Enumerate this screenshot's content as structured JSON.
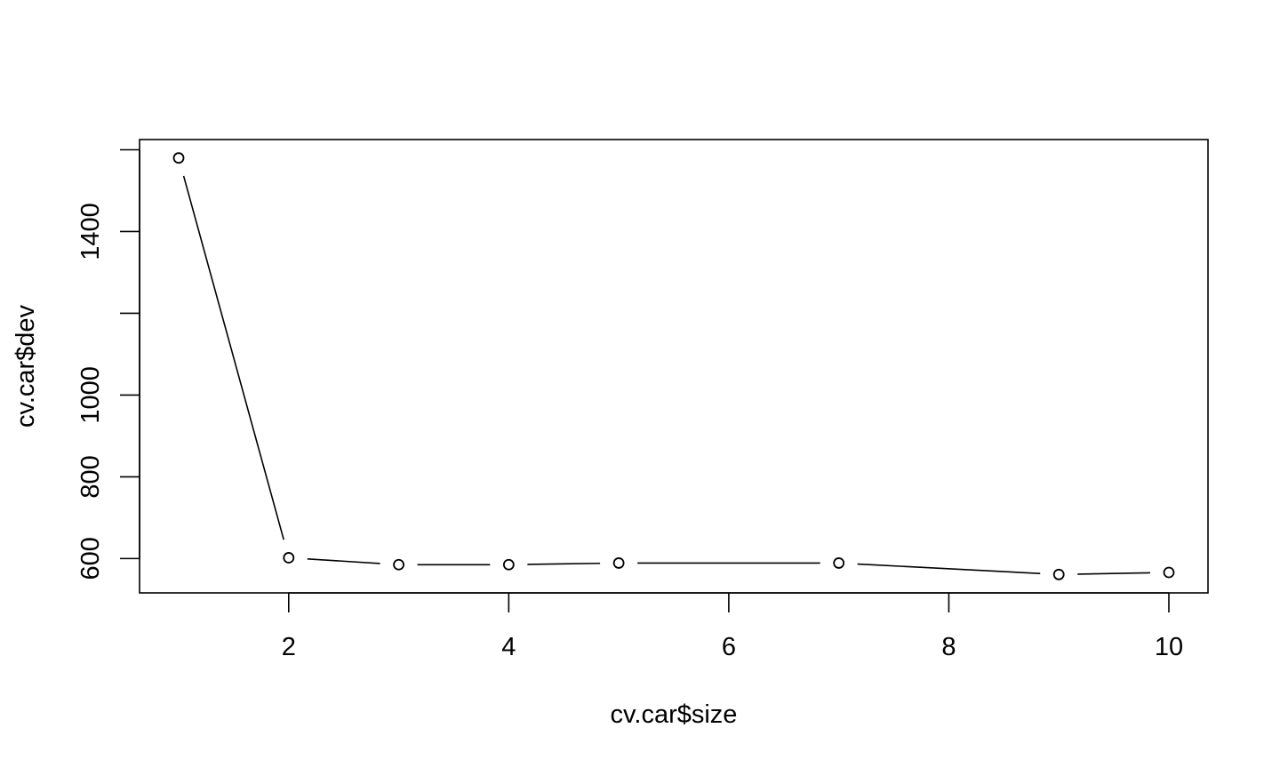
{
  "chart_data": {
    "type": "line",
    "xlabel": "cv.car$size",
    "ylabel": "cv.car$dev",
    "xlim": [
      0.6444,
      10.3556
    ],
    "ylim": [
      516,
      1625
    ],
    "x_ticks": [
      2,
      4,
      6,
      8,
      10
    ],
    "y_ticks": [
      600,
      800,
      1000,
      1200,
      1400,
      1600
    ],
    "y_tick_labels": [
      "600",
      "800",
      "1000",
      "",
      "1400",
      ""
    ],
    "x_tick_labels": [
      "2",
      "4",
      "6",
      "8",
      "10"
    ],
    "grid": false,
    "legend": "none",
    "marker": "open-circle",
    "line_style": "type b (lines with gaps at points)",
    "x": [
      1,
      2,
      3,
      4,
      5,
      7,
      9,
      10
    ],
    "y": [
      1580,
      602,
      585,
      585,
      589,
      589,
      561,
      566
    ]
  }
}
